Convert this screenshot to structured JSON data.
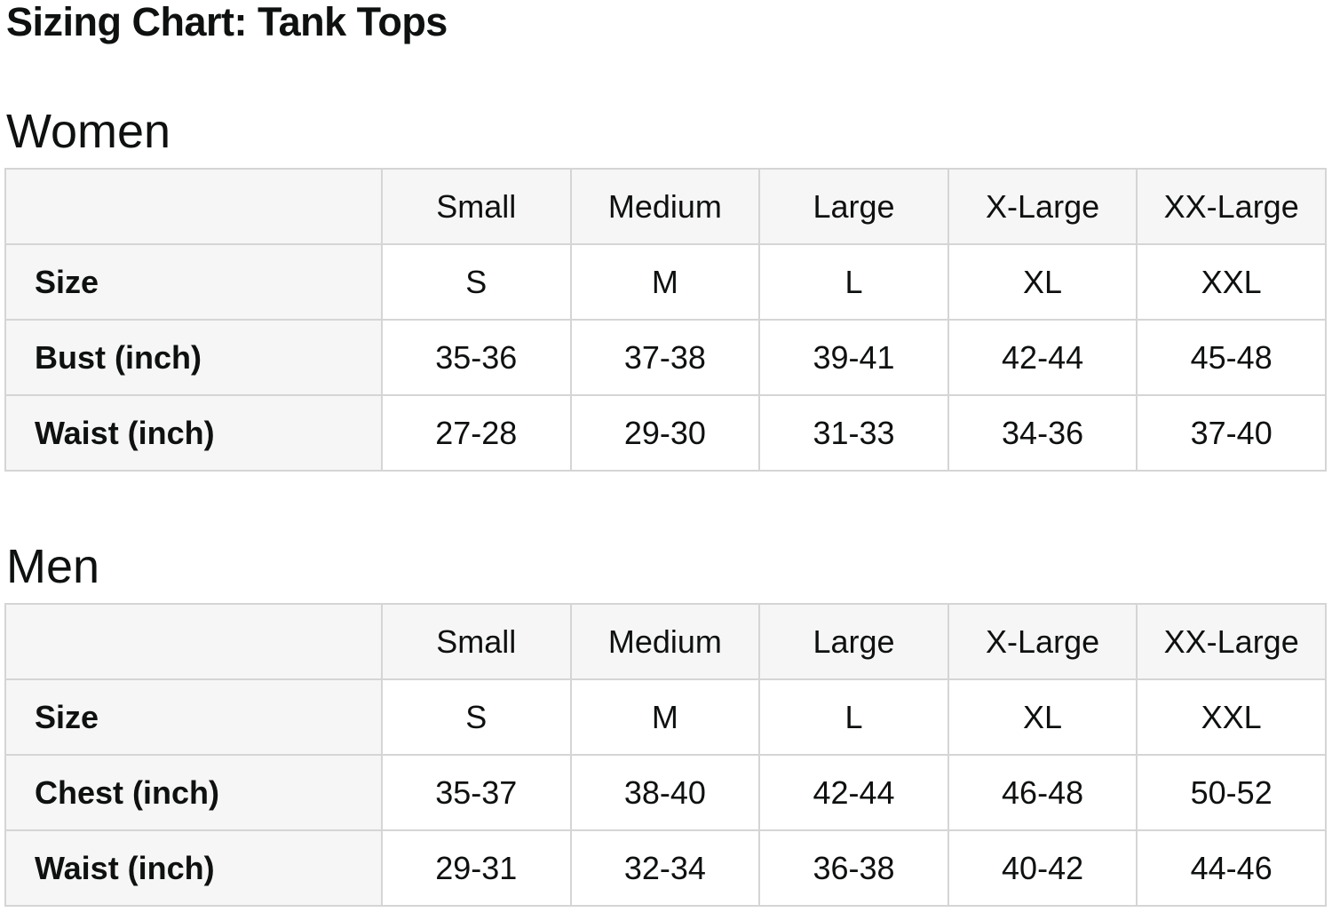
{
  "page": {
    "title": "Sizing Chart: Tank Tops"
  },
  "colors": {
    "background": "#ffffff",
    "header_cell_bg": "#f6f6f6",
    "border": "#d5d5d5",
    "text": "#0f1111"
  },
  "sections": [
    {
      "heading": "Women",
      "table": {
        "column_headers": [
          "",
          "Small",
          "Medium",
          "Large",
          "X-Large",
          "XX-Large"
        ],
        "rows": [
          {
            "label": "Size",
            "values": [
              "S",
              "M",
              "L",
              "XL",
              "XXL"
            ]
          },
          {
            "label": "Bust (inch)",
            "values": [
              "35-36",
              "37-38",
              "39-41",
              "42-44",
              "45-48"
            ]
          },
          {
            "label": "Waist (inch)",
            "values": [
              "27-28",
              "29-30",
              "31-33",
              "34-36",
              "37-40"
            ]
          }
        ]
      }
    },
    {
      "heading": "Men",
      "table": {
        "column_headers": [
          "",
          "Small",
          "Medium",
          "Large",
          "X-Large",
          "XX-Large"
        ],
        "rows": [
          {
            "label": "Size",
            "values": [
              "S",
              "M",
              "L",
              "XL",
              "XXL"
            ]
          },
          {
            "label": "Chest (inch)",
            "values": [
              "35-37",
              "38-40",
              "42-44",
              "46-48",
              "50-52"
            ]
          },
          {
            "label": "Waist (inch)",
            "values": [
              "29-31",
              "32-34",
              "36-38",
              "40-42",
              "44-46"
            ]
          }
        ]
      }
    }
  ]
}
